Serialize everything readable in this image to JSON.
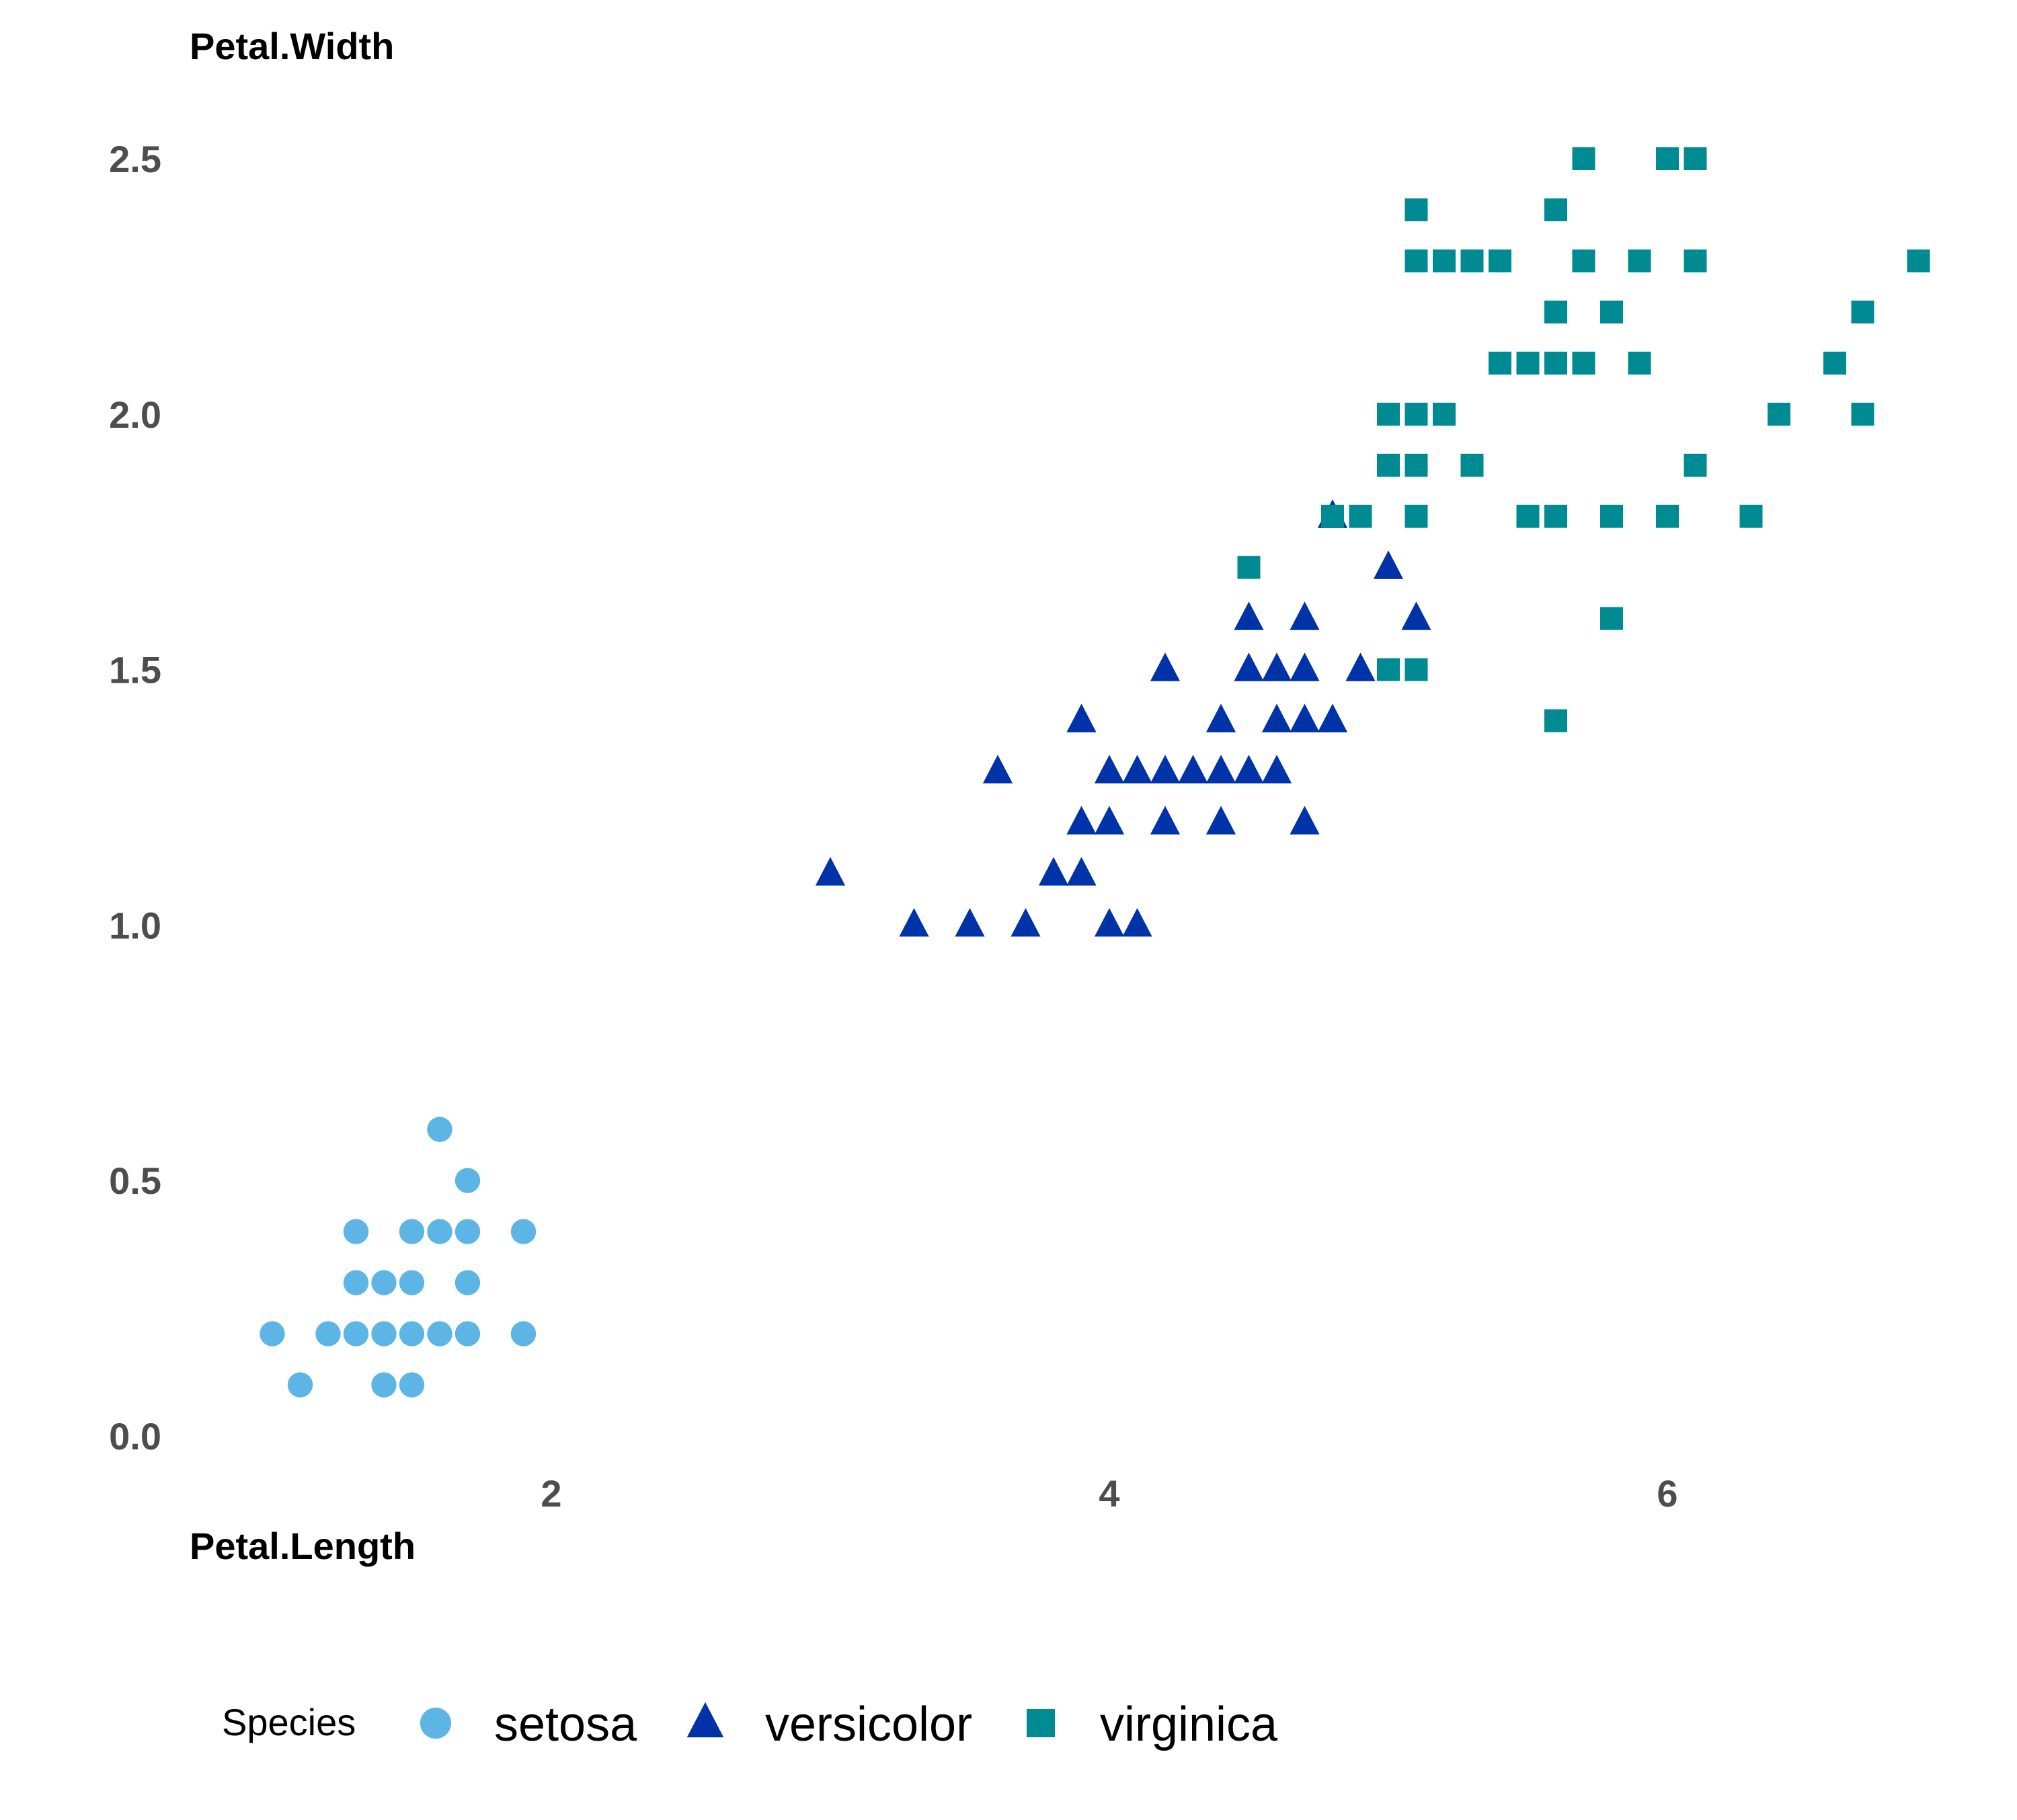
{
  "chart_data": {
    "type": "scatter",
    "xlabel": "Petal.Length",
    "ylabel": "Petal.Width",
    "xlim": [
      0.7,
      7.1
    ],
    "ylim": [
      0.0,
      2.6
    ],
    "x_ticks": [
      {
        "value": 2,
        "label": "2"
      },
      {
        "value": 4,
        "label": "4"
      },
      {
        "value": 6,
        "label": "6"
      }
    ],
    "y_ticks": [
      {
        "value": 0.0,
        "label": "0.0"
      },
      {
        "value": 0.5,
        "label": "0.5"
      },
      {
        "value": 1.0,
        "label": "1.0"
      },
      {
        "value": 1.5,
        "label": "1.5"
      },
      {
        "value": 2.0,
        "label": "2.0"
      },
      {
        "value": 2.5,
        "label": "2.5"
      }
    ],
    "grid": false,
    "legend": {
      "title": "Species",
      "placement": "bottom"
    },
    "series": [
      {
        "name": "setosa",
        "shape": "circle",
        "color": "#5db5e5",
        "points": [
          [
            1.0,
            0.2
          ],
          [
            1.1,
            0.1
          ],
          [
            1.2,
            0.2
          ],
          [
            1.3,
            0.2
          ],
          [
            1.3,
            0.3
          ],
          [
            1.3,
            0.4
          ],
          [
            1.4,
            0.1
          ],
          [
            1.4,
            0.2
          ],
          [
            1.4,
            0.3
          ],
          [
            1.5,
            0.1
          ],
          [
            1.5,
            0.2
          ],
          [
            1.5,
            0.3
          ],
          [
            1.5,
            0.4
          ],
          [
            1.6,
            0.2
          ],
          [
            1.6,
            0.4
          ],
          [
            1.6,
            0.6
          ],
          [
            1.7,
            0.2
          ],
          [
            1.7,
            0.3
          ],
          [
            1.7,
            0.4
          ],
          [
            1.7,
            0.5
          ],
          [
            1.9,
            0.2
          ],
          [
            1.9,
            0.4
          ]
        ]
      },
      {
        "name": "versicolor",
        "shape": "triangle",
        "color": "#0033a8",
        "points": [
          [
            3.0,
            1.1
          ],
          [
            3.3,
            1.0
          ],
          [
            3.5,
            1.0
          ],
          [
            3.6,
            1.3
          ],
          [
            3.7,
            1.0
          ],
          [
            3.8,
            1.1
          ],
          [
            3.9,
            1.1
          ],
          [
            3.9,
            1.2
          ],
          [
            3.9,
            1.4
          ],
          [
            4.0,
            1.0
          ],
          [
            4.0,
            1.2
          ],
          [
            4.0,
            1.3
          ],
          [
            4.1,
            1.0
          ],
          [
            4.1,
            1.3
          ],
          [
            4.2,
            1.2
          ],
          [
            4.2,
            1.3
          ],
          [
            4.2,
            1.5
          ],
          [
            4.3,
            1.3
          ],
          [
            4.4,
            1.2
          ],
          [
            4.4,
            1.3
          ],
          [
            4.4,
            1.4
          ],
          [
            4.5,
            1.3
          ],
          [
            4.5,
            1.5
          ],
          [
            4.5,
            1.6
          ],
          [
            4.6,
            1.3
          ],
          [
            4.6,
            1.4
          ],
          [
            4.6,
            1.5
          ],
          [
            4.7,
            1.2
          ],
          [
            4.7,
            1.4
          ],
          [
            4.7,
            1.5
          ],
          [
            4.7,
            1.6
          ],
          [
            4.8,
            1.4
          ],
          [
            4.8,
            1.8
          ],
          [
            4.9,
            1.5
          ],
          [
            5.0,
            1.7
          ],
          [
            5.1,
            1.6
          ]
        ]
      },
      {
        "name": "virginica",
        "shape": "square",
        "color": "#008b93",
        "points": [
          [
            4.5,
            1.7
          ],
          [
            4.8,
            1.8
          ],
          [
            4.9,
            1.8
          ],
          [
            5.0,
            1.5
          ],
          [
            5.0,
            1.9
          ],
          [
            5.0,
            2.0
          ],
          [
            5.1,
            1.5
          ],
          [
            5.1,
            1.8
          ],
          [
            5.1,
            1.9
          ],
          [
            5.1,
            2.0
          ],
          [
            5.1,
            2.3
          ],
          [
            5.1,
            2.4
          ],
          [
            5.2,
            2.0
          ],
          [
            5.2,
            2.3
          ],
          [
            5.3,
            1.9
          ],
          [
            5.3,
            2.3
          ],
          [
            5.4,
            2.1
          ],
          [
            5.4,
            2.3
          ],
          [
            5.5,
            1.8
          ],
          [
            5.5,
            2.1
          ],
          [
            5.6,
            1.4
          ],
          [
            5.6,
            1.8
          ],
          [
            5.6,
            2.1
          ],
          [
            5.6,
            2.2
          ],
          [
            5.6,
            2.4
          ],
          [
            5.7,
            2.1
          ],
          [
            5.7,
            2.3
          ],
          [
            5.7,
            2.5
          ],
          [
            5.8,
            1.6
          ],
          [
            5.8,
            1.8
          ],
          [
            5.8,
            2.2
          ],
          [
            5.9,
            2.1
          ],
          [
            5.9,
            2.3
          ],
          [
            6.0,
            1.8
          ],
          [
            6.0,
            2.5
          ],
          [
            6.1,
            1.9
          ],
          [
            6.1,
            2.3
          ],
          [
            6.1,
            2.5
          ],
          [
            6.3,
            1.8
          ],
          [
            6.4,
            2.0
          ],
          [
            6.6,
            2.1
          ],
          [
            6.7,
            2.0
          ],
          [
            6.7,
            2.2
          ],
          [
            6.9,
            2.3
          ]
        ]
      }
    ]
  }
}
